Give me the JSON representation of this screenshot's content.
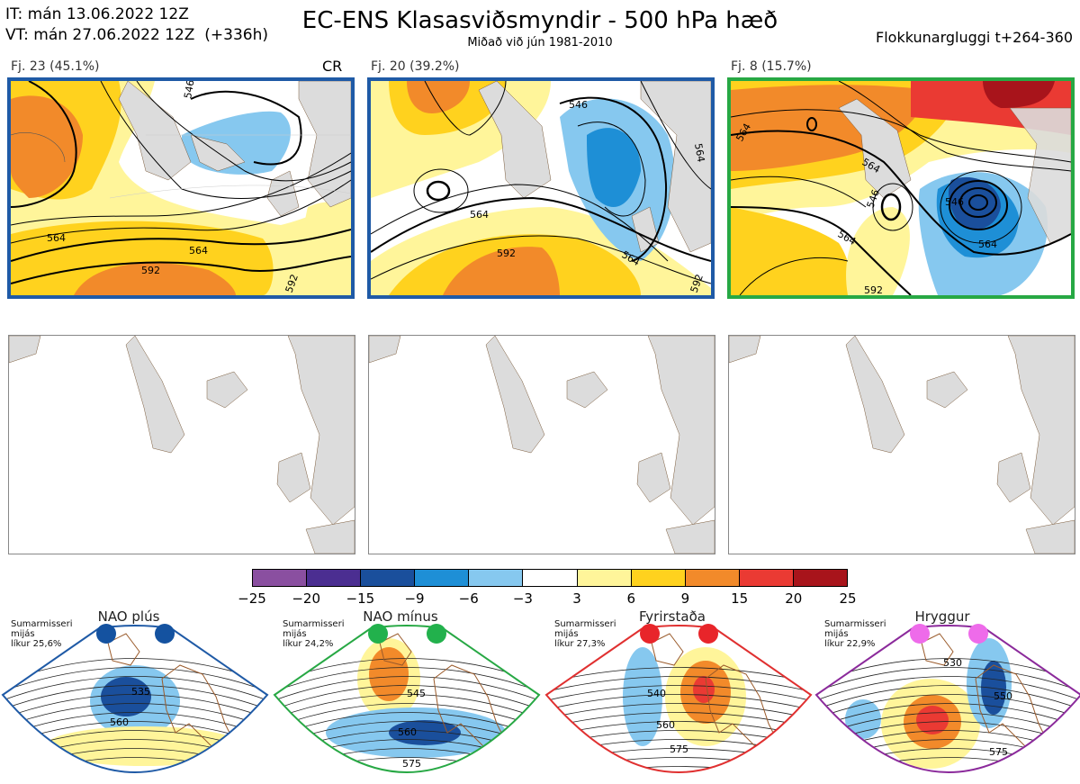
{
  "header": {
    "it_line": "IT: mán 13.06.2022 12Z",
    "vt_line": "VT: mán 27.06.2022 12Z  (+336h)",
    "title": "EC-ENS Klasasviðsmyndir - 500 hPa hæð",
    "subtitle": "Miðað við jún 1981-2010",
    "window": "Flokkunargluggi t+264-360"
  },
  "colors": {
    "frame_blue": "#1f5aa6",
    "frame_green": "#27a844",
    "frame_red": "#e03030",
    "frame_purple": "#8b2a9b",
    "land": "#dcdcdc",
    "coast": "#7a5a3a"
  },
  "clusters": [
    {
      "label": "Fj. 23 (45.1%)",
      "badge": "CR",
      "frame": "blue",
      "contours": [
        "546",
        "564",
        "564",
        "592",
        "592"
      ]
    },
    {
      "label": "Fj. 20 (39.2%)",
      "badge": "",
      "frame": "blue",
      "contours": [
        "546",
        "564",
        "564",
        "592",
        "564",
        "592"
      ]
    },
    {
      "label": "Fj. 8 (15.7%)",
      "badge": "",
      "frame": "green",
      "contours": [
        "546",
        "564",
        "546",
        "564",
        "564",
        "564",
        "592"
      ]
    }
  ],
  "colorbar": {
    "ticks": [
      "−25",
      "−20",
      "−15",
      "−9",
      "−6",
      "−3",
      "3",
      "6",
      "9",
      "15",
      "20",
      "25"
    ],
    "colors": [
      "#8a4fa0",
      "#4b2e91",
      "#1a4f9c",
      "#1e8fd6",
      "#86c8ef",
      "#ffffff",
      "#fff59a",
      "#ffd21e",
      "#f28a2a",
      "#ea3a33",
      "#a8141b"
    ]
  },
  "regimes": [
    {
      "title": "NAO plús",
      "note": "Sumarmisseri\nmijás\nlíkur 25,6%",
      "frame": "#1f5aa6",
      "dot": "#1452a0",
      "contours": [
        "535",
        "560"
      ]
    },
    {
      "title": "NAO mínus",
      "note": "Sumarmisseri\nmijás\nlíkur 24,2%",
      "frame": "#27a844",
      "dot": "#22b14c",
      "contours": [
        "545",
        "560",
        "575"
      ]
    },
    {
      "title": "Fyrirstaða",
      "note": "Sumarmisseri\nmijás\nlíkur 27,3%",
      "frame": "#e03030",
      "dot": "#e8252a",
      "contours": [
        "540",
        "560",
        "575"
      ]
    },
    {
      "title": "Hryggur",
      "note": "Sumarmisseri\nmijás\nlíkur 22,9%",
      "frame": "#8b2a9b",
      "dot": "#ee6bea",
      "contours": [
        "530",
        "550",
        "575"
      ]
    }
  ]
}
